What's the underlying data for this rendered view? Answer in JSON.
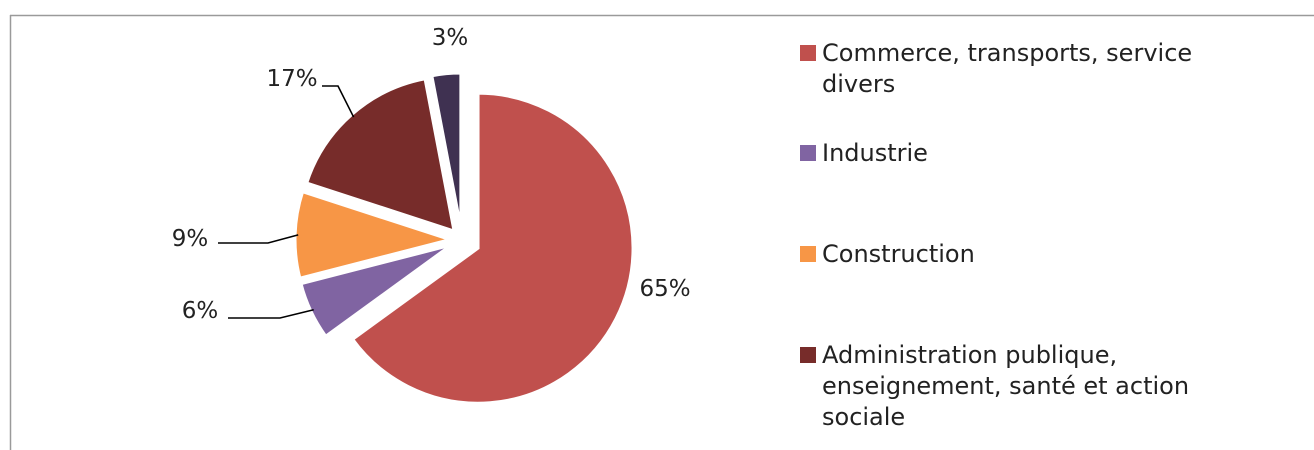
{
  "chart_data": {
    "type": "pie",
    "title": "",
    "slices": [
      {
        "label": "Commerce, transports, service divers",
        "value": 65,
        "display": "65%",
        "color": "#C0504D"
      },
      {
        "label": "Industrie",
        "value": 6,
        "display": "6%",
        "color": "#8064A2"
      },
      {
        "label": "Construction",
        "value": 9,
        "display": "9%",
        "color": "#F79646"
      },
      {
        "label": "Administration publique, enseignement, santé et action sociale",
        "value": 17,
        "display": "17%",
        "color": "#772C2A"
      },
      {
        "label": "",
        "value": 3,
        "display": "3%",
        "color": "#3F3151"
      }
    ],
    "legend_position": "right"
  },
  "legend": [
    {
      "label": "Commerce, transports, service divers",
      "color": "#C0504D"
    },
    {
      "label": "Industrie",
      "color": "#8064A2"
    },
    {
      "label": "Construction",
      "color": "#F79646"
    },
    {
      "label": "Administration publique, enseignement, santé et action sociale",
      "color": "#772C2A"
    }
  ]
}
